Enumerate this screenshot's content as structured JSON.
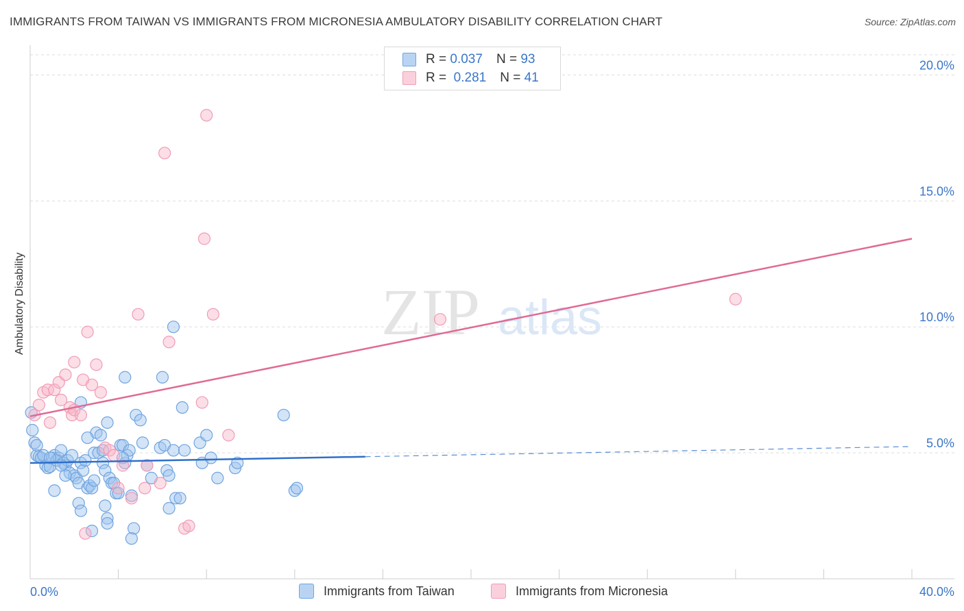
{
  "header": {
    "title": "IMMIGRANTS FROM TAIWAN VS IMMIGRANTS FROM MICRONESIA AMBULATORY DISABILITY CORRELATION CHART",
    "source": "Source: ZipAtlas.com"
  },
  "watermark": {
    "zip": "ZIP",
    "atlas": "atlas"
  },
  "legend": {
    "rows": [
      {
        "r_label": "R =",
        "r_value": "0.037",
        "n_label": "N =",
        "n_value": "93",
        "color": "#9dc3ee"
      },
      {
        "r_label": "R =",
        "r_value": "0.281",
        "n_label": "N =",
        "n_value": "41",
        "color": "#f6b5c8"
      }
    ]
  },
  "bottom_legend": {
    "taiwan": "Immigrants from Taiwan",
    "micronesia": "Immigrants from Micronesia"
  },
  "chart_data": {
    "type": "scatter",
    "xlabel": "",
    "ylabel": "Ambulatory Disability",
    "xlim": [
      0,
      40
    ],
    "ylim": [
      0,
      20.8
    ],
    "x_tick_labels": [
      "0.0%",
      "40.0%"
    ],
    "y_tick_values": [
      5,
      10,
      15,
      20
    ],
    "y_tick_labels": [
      "5.0%",
      "10.0%",
      "15.0%",
      "20.0%"
    ],
    "grid": "horizontal dashed",
    "legend_position": "top-center",
    "colors": {
      "taiwan": "#6fa4e0",
      "taiwan_line": "#2f6fc9",
      "micronesia": "#f19bb6",
      "micronesia_line": "#e06a95"
    },
    "series": [
      {
        "name": "Immigrants from Taiwan",
        "r": 0.037,
        "n": 93,
        "trend": {
          "x0": 0,
          "y0": 4.6,
          "x1": 40,
          "y1": 5.25,
          "solid_until_x": 15.2
        },
        "points": [
          [
            0.05,
            6.6
          ],
          [
            0.1,
            5.9
          ],
          [
            0.2,
            5.4
          ],
          [
            0.3,
            4.9
          ],
          [
            0.4,
            4.85
          ],
          [
            0.5,
            4.8
          ],
          [
            0.6,
            4.9
          ],
          [
            0.7,
            4.5
          ],
          [
            0.8,
            4.4
          ],
          [
            0.9,
            4.45
          ],
          [
            1.0,
            4.8
          ],
          [
            1.1,
            4.9
          ],
          [
            1.2,
            4.7
          ],
          [
            1.3,
            4.8
          ],
          [
            1.4,
            5.1
          ],
          [
            1.5,
            4.6
          ],
          [
            1.6,
            4.5
          ],
          [
            1.7,
            4.7
          ],
          [
            1.8,
            4.2
          ],
          [
            1.9,
            4.9
          ],
          [
            2.0,
            4.1
          ],
          [
            2.1,
            4.0
          ],
          [
            2.2,
            3.8
          ],
          [
            2.3,
            4.6
          ],
          [
            2.4,
            4.3
          ],
          [
            2.5,
            4.7
          ],
          [
            2.6,
            3.6
          ],
          [
            2.7,
            3.7
          ],
          [
            2.8,
            3.6
          ],
          [
            2.9,
            5.0
          ],
          [
            3.0,
            5.8
          ],
          [
            3.1,
            5.0
          ],
          [
            3.2,
            5.7
          ],
          [
            3.3,
            4.6
          ],
          [
            3.4,
            4.3
          ],
          [
            3.5,
            6.2
          ],
          [
            3.6,
            4.0
          ],
          [
            3.7,
            3.8
          ],
          [
            3.8,
            3.8
          ],
          [
            3.9,
            3.4
          ],
          [
            4.0,
            3.4
          ],
          [
            4.1,
            5.3
          ],
          [
            4.2,
            5.3
          ],
          [
            4.3,
            4.6
          ],
          [
            4.4,
            4.9
          ],
          [
            4.5,
            5.1
          ],
          [
            4.6,
            3.3
          ],
          [
            4.2,
            4.8
          ],
          [
            3.3,
            5.1
          ],
          [
            2.9,
            3.9
          ],
          [
            4.3,
            8.0
          ],
          [
            4.8,
            6.5
          ],
          [
            5.0,
            6.3
          ],
          [
            5.1,
            5.4
          ],
          [
            5.3,
            4.5
          ],
          [
            5.5,
            4.0
          ],
          [
            5.9,
            5.2
          ],
          [
            6.1,
            5.3
          ],
          [
            6.2,
            4.3
          ],
          [
            6.3,
            4.1
          ],
          [
            6.5,
            5.1
          ],
          [
            6.6,
            3.2
          ],
          [
            6.8,
            3.2
          ],
          [
            6.9,
            6.8
          ],
          [
            7.0,
            5.1
          ],
          [
            7.7,
            5.4
          ],
          [
            7.8,
            4.6
          ],
          [
            8.0,
            5.7
          ],
          [
            8.2,
            4.8
          ],
          [
            8.5,
            4.0
          ],
          [
            9.3,
            4.4
          ],
          [
            9.4,
            4.6
          ],
          [
            11.5,
            6.5
          ],
          [
            12.0,
            3.5
          ],
          [
            12.1,
            3.6
          ],
          [
            6.5,
            10.0
          ],
          [
            6.0,
            8.0
          ],
          [
            2.3,
            7.0
          ],
          [
            1.1,
            3.5
          ],
          [
            2.2,
            3.0
          ],
          [
            2.3,
            2.7
          ],
          [
            2.8,
            1.9
          ],
          [
            3.5,
            2.4
          ],
          [
            3.5,
            2.2
          ],
          [
            4.7,
            2.0
          ],
          [
            4.6,
            1.6
          ],
          [
            3.4,
            2.9
          ],
          [
            6.3,
            2.8
          ],
          [
            0.3,
            5.3
          ],
          [
            1.6,
            4.1
          ],
          [
            0.9,
            4.8
          ],
          [
            1.4,
            4.5
          ],
          [
            2.6,
            5.6
          ]
        ]
      },
      {
        "name": "Immigrants from Micronesia",
        "r": 0.281,
        "n": 41,
        "trend": {
          "x0": 0,
          "y0": 6.45,
          "x1": 40,
          "y1": 13.5,
          "solid_until_x": 40
        },
        "points": [
          [
            0.2,
            6.5
          ],
          [
            0.4,
            6.9
          ],
          [
            0.6,
            7.4
          ],
          [
            0.8,
            7.5
          ],
          [
            0.9,
            6.2
          ],
          [
            1.1,
            7.5
          ],
          [
            1.3,
            7.8
          ],
          [
            1.4,
            7.1
          ],
          [
            1.6,
            8.1
          ],
          [
            1.8,
            6.8
          ],
          [
            1.9,
            6.5
          ],
          [
            2.0,
            6.7
          ],
          [
            2.0,
            8.6
          ],
          [
            2.3,
            6.5
          ],
          [
            2.4,
            7.9
          ],
          [
            2.6,
            9.8
          ],
          [
            2.8,
            7.7
          ],
          [
            3.0,
            8.5
          ],
          [
            3.2,
            7.4
          ],
          [
            3.4,
            5.2
          ],
          [
            3.6,
            5.1
          ],
          [
            3.8,
            4.9
          ],
          [
            4.0,
            3.6
          ],
          [
            4.2,
            4.5
          ],
          [
            4.6,
            3.2
          ],
          [
            4.9,
            10.5
          ],
          [
            5.2,
            3.6
          ],
          [
            5.3,
            4.5
          ],
          [
            5.9,
            3.8
          ],
          [
            6.3,
            9.4
          ],
          [
            6.1,
            16.9
          ],
          [
            7.0,
            2.0
          ],
          [
            7.2,
            2.1
          ],
          [
            7.8,
            7.0
          ],
          [
            7.9,
            13.5
          ],
          [
            8.0,
            18.4
          ],
          [
            8.3,
            10.5
          ],
          [
            9.0,
            5.7
          ],
          [
            18.6,
            10.3
          ],
          [
            32.0,
            11.1
          ],
          [
            2.5,
            1.8
          ]
        ]
      }
    ]
  }
}
